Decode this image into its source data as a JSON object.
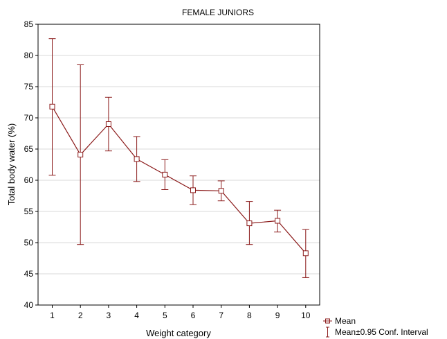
{
  "chart_data": {
    "type": "line",
    "title": "FEMALE JUNIORS",
    "xlabel": "Weight category",
    "ylabel": "Total body water (%)",
    "ylim": [
      40,
      85
    ],
    "yticks": [
      40,
      45,
      50,
      55,
      60,
      65,
      70,
      75,
      80,
      85
    ],
    "categories": [
      "1",
      "2",
      "3",
      "4",
      "5",
      "6",
      "7",
      "8",
      "9",
      "10"
    ],
    "series": [
      {
        "name": "Mean",
        "values": [
          71.8,
          64.1,
          69.0,
          63.4,
          60.9,
          58.4,
          58.3,
          53.1,
          53.5,
          48.3
        ],
        "ci_lower": [
          60.8,
          49.7,
          64.7,
          59.8,
          58.5,
          56.1,
          56.7,
          49.7,
          51.7,
          44.4
        ],
        "ci_upper": [
          82.7,
          78.5,
          73.3,
          67.0,
          63.3,
          60.7,
          59.9,
          56.6,
          55.2,
          52.1
        ]
      }
    ],
    "legend": {
      "position": "bottom-right",
      "entries": [
        "Mean",
        "Mean±0.95 Conf. Interval"
      ]
    },
    "grid": "horizontal",
    "color": "#8b1a1a"
  }
}
